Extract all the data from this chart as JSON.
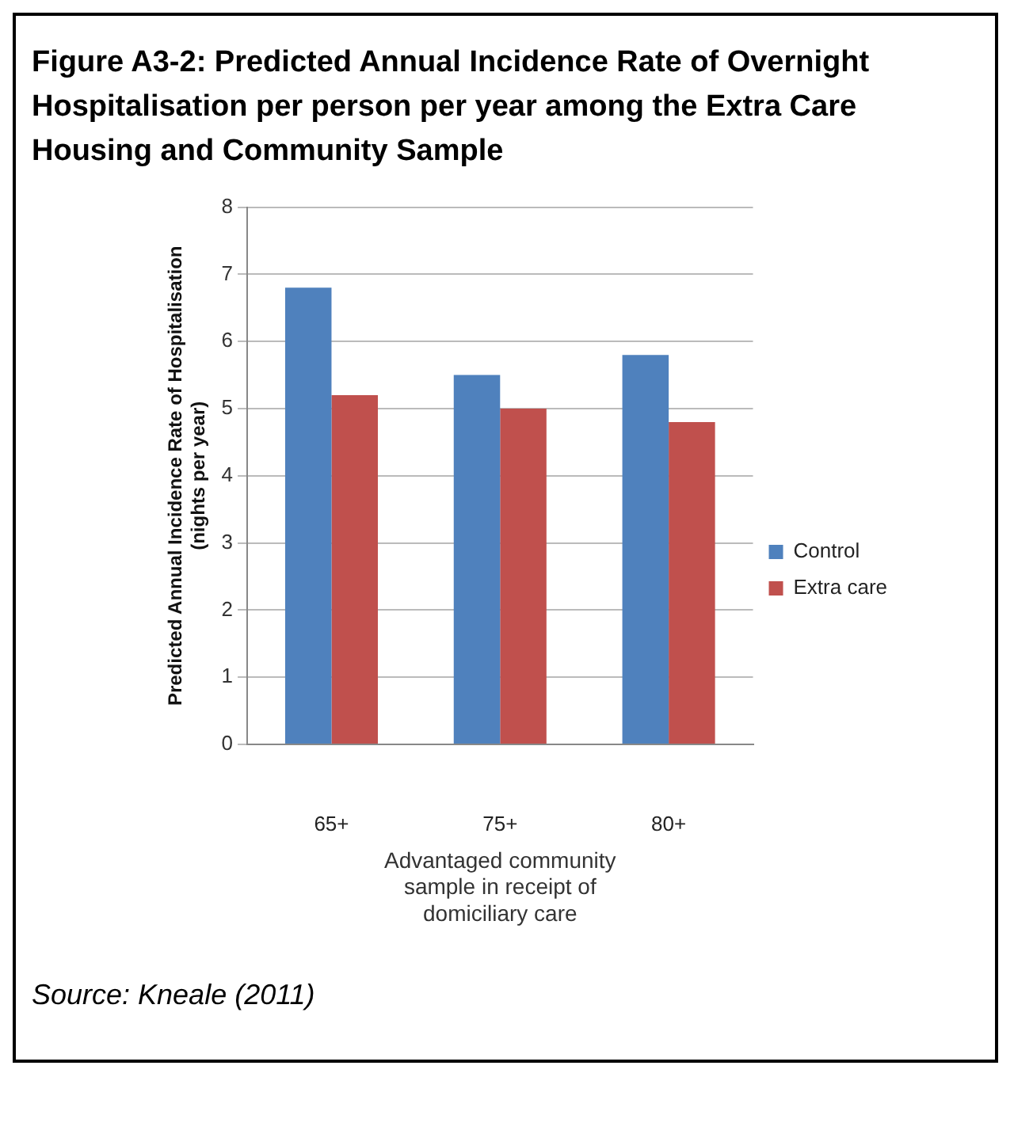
{
  "chart_data": {
    "type": "bar",
    "title": "Figure A3-2: Predicted Annual Incidence Rate of Overnight Hospitalisation per person per year among the Extra Care Housing and Community Sample",
    "xlabel": "Advantaged community sample in receipt of domiciliary care",
    "ylabel": "Predicted Annual Incidence Rate of Hospitalisation (nights per year)",
    "categories": [
      "65+",
      "75+",
      "80+"
    ],
    "series": [
      {
        "name": "Control",
        "color": "#4f81bd",
        "values": [
          6.8,
          5.5,
          5.8
        ]
      },
      {
        "name": "Extra care",
        "color": "#c0504d",
        "values": [
          5.2,
          5.0,
          4.8
        ]
      }
    ],
    "ylim": [
      0,
      8
    ],
    "yticks": [
      0,
      1,
      2,
      3,
      4,
      5,
      6,
      7,
      8
    ],
    "grid": "y",
    "legend": "right",
    "annotations": [
      "Source: Kneale (2011)"
    ]
  }
}
